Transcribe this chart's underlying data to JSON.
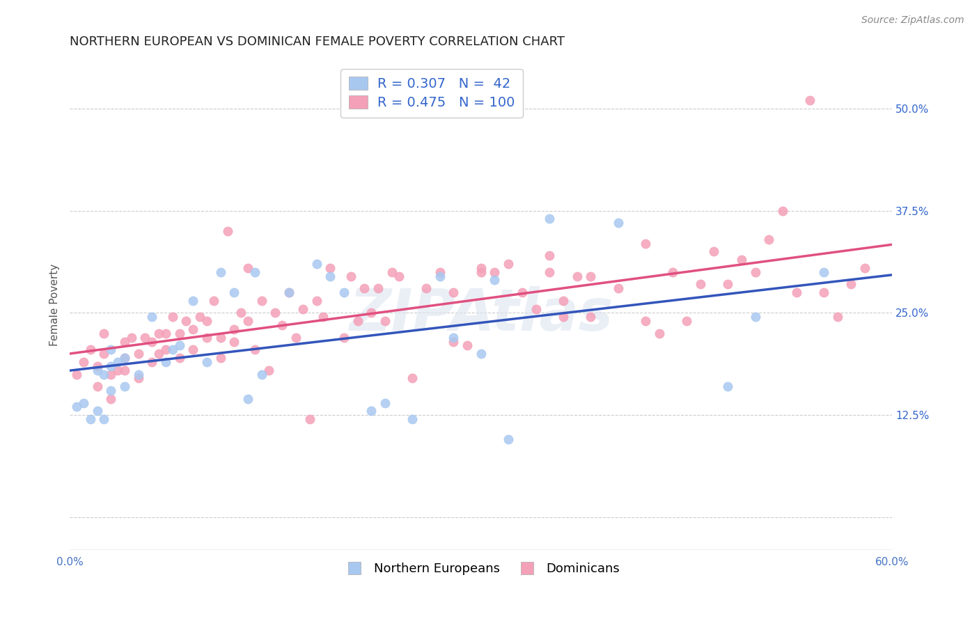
{
  "title": "NORTHERN EUROPEAN VS DOMINICAN FEMALE POVERTY CORRELATION CHART",
  "source": "Source: ZipAtlas.com",
  "ylabel": "Female Poverty",
  "xlim": [
    0.0,
    0.6
  ],
  "ylim": [
    -0.04,
    0.56
  ],
  "ytick_right": [
    0.125,
    0.25,
    0.375,
    0.5
  ],
  "ytick_right_labels": [
    "12.5%",
    "25.0%",
    "37.5%",
    "50.0%"
  ],
  "blue_color": "#a8c8f0",
  "pink_color": "#f4a0b8",
  "blue_line_color": "#3355bb",
  "pink_line_color": "#e05080",
  "legend_text_color": "#3366cc",
  "title_fontsize": 13,
  "axis_label_fontsize": 11,
  "tick_fontsize": 11,
  "R_blue": 0.307,
  "N_blue": 42,
  "R_pink": 0.475,
  "N_pink": 100,
  "blue_scatter_x": [
    0.005,
    0.01,
    0.015,
    0.02,
    0.02,
    0.025,
    0.025,
    0.03,
    0.03,
    0.03,
    0.035,
    0.04,
    0.04,
    0.05,
    0.06,
    0.07,
    0.075,
    0.08,
    0.09,
    0.1,
    0.11,
    0.12,
    0.13,
    0.135,
    0.14,
    0.16,
    0.18,
    0.19,
    0.2,
    0.22,
    0.23,
    0.25,
    0.27,
    0.28,
    0.3,
    0.31,
    0.32,
    0.35,
    0.4,
    0.48,
    0.5,
    0.55
  ],
  "blue_scatter_y": [
    0.135,
    0.14,
    0.12,
    0.13,
    0.18,
    0.12,
    0.175,
    0.155,
    0.185,
    0.205,
    0.19,
    0.16,
    0.195,
    0.175,
    0.245,
    0.19,
    0.205,
    0.21,
    0.265,
    0.19,
    0.3,
    0.275,
    0.145,
    0.3,
    0.175,
    0.275,
    0.31,
    0.295,
    0.275,
    0.13,
    0.14,
    0.12,
    0.295,
    0.22,
    0.2,
    0.29,
    0.095,
    0.365,
    0.36,
    0.16,
    0.245,
    0.3
  ],
  "pink_scatter_x": [
    0.005,
    0.01,
    0.015,
    0.02,
    0.02,
    0.025,
    0.025,
    0.03,
    0.03,
    0.035,
    0.04,
    0.04,
    0.04,
    0.045,
    0.05,
    0.05,
    0.055,
    0.06,
    0.06,
    0.065,
    0.065,
    0.07,
    0.07,
    0.075,
    0.08,
    0.08,
    0.085,
    0.09,
    0.09,
    0.095,
    0.1,
    0.1,
    0.105,
    0.11,
    0.11,
    0.115,
    0.12,
    0.12,
    0.125,
    0.13,
    0.13,
    0.135,
    0.14,
    0.145,
    0.15,
    0.155,
    0.16,
    0.165,
    0.17,
    0.175,
    0.18,
    0.185,
    0.19,
    0.2,
    0.205,
    0.21,
    0.215,
    0.22,
    0.225,
    0.23,
    0.235,
    0.24,
    0.25,
    0.26,
    0.27,
    0.28,
    0.29,
    0.3,
    0.31,
    0.32,
    0.33,
    0.34,
    0.35,
    0.36,
    0.37,
    0.38,
    0.4,
    0.42,
    0.43,
    0.44,
    0.45,
    0.46,
    0.47,
    0.48,
    0.49,
    0.5,
    0.51,
    0.52,
    0.53,
    0.54,
    0.55,
    0.56,
    0.57,
    0.58,
    0.28,
    0.3,
    0.35,
    0.36,
    0.38,
    0.42
  ],
  "pink_scatter_y": [
    0.175,
    0.19,
    0.205,
    0.16,
    0.185,
    0.2,
    0.225,
    0.145,
    0.175,
    0.18,
    0.18,
    0.195,
    0.215,
    0.22,
    0.17,
    0.2,
    0.22,
    0.19,
    0.215,
    0.2,
    0.225,
    0.205,
    0.225,
    0.245,
    0.195,
    0.225,
    0.24,
    0.205,
    0.23,
    0.245,
    0.22,
    0.24,
    0.265,
    0.195,
    0.22,
    0.35,
    0.215,
    0.23,
    0.25,
    0.24,
    0.305,
    0.205,
    0.265,
    0.18,
    0.25,
    0.235,
    0.275,
    0.22,
    0.255,
    0.12,
    0.265,
    0.245,
    0.305,
    0.22,
    0.295,
    0.24,
    0.28,
    0.25,
    0.28,
    0.24,
    0.3,
    0.295,
    0.17,
    0.28,
    0.3,
    0.275,
    0.21,
    0.3,
    0.3,
    0.31,
    0.275,
    0.255,
    0.3,
    0.245,
    0.295,
    0.245,
    0.28,
    0.335,
    0.225,
    0.3,
    0.24,
    0.285,
    0.325,
    0.285,
    0.315,
    0.3,
    0.34,
    0.375,
    0.275,
    0.51,
    0.275,
    0.245,
    0.285,
    0.305,
    0.215,
    0.305,
    0.32,
    0.265,
    0.295,
    0.24
  ]
}
